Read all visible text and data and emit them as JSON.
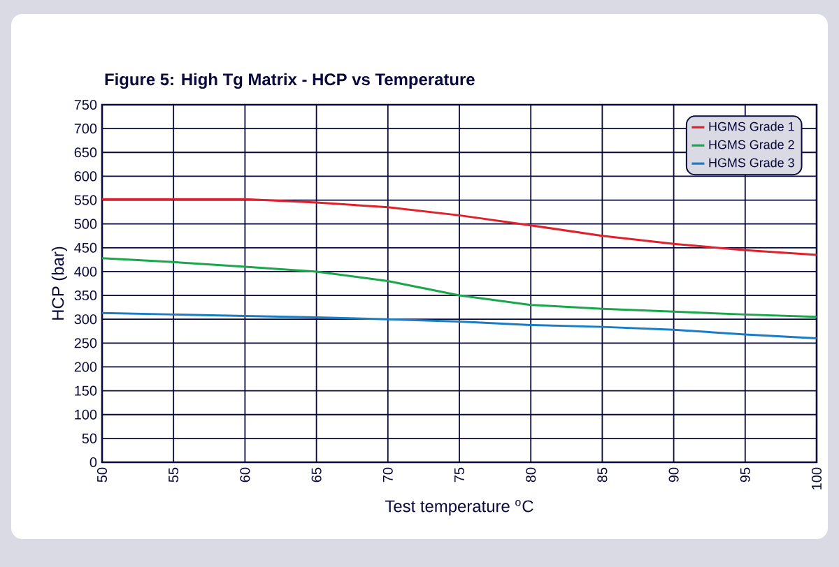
{
  "chart_data": {
    "type": "line",
    "title": "Figure 5: High Tg Matrix - HCP vs Temperature",
    "xlabel": "Test temperature $^{o}$C",
    "ylabel": "HCP (bar)",
    "x": [
      50,
      55,
      60,
      65,
      70,
      75,
      80,
      85,
      90,
      95,
      100
    ],
    "series": [
      {
        "name": "HGMS Grade 1",
        "color": "#e0202a",
        "values": [
          552,
          552,
          552,
          545,
          535,
          518,
          497,
          475,
          458,
          445,
          435
        ]
      },
      {
        "name": "HGMS Grade 2",
        "color": "#1aa64a",
        "values": [
          428,
          420,
          410,
          400,
          380,
          350,
          330,
          322,
          316,
          310,
          305
        ]
      },
      {
        "name": "HGMS Grade 3",
        "color": "#1a7cc4",
        "values": [
          313,
          310,
          307,
          304,
          300,
          295,
          288,
          284,
          278,
          268,
          260
        ]
      }
    ],
    "xlim": [
      50,
      100
    ],
    "xticks": [
      50,
      55,
      60,
      65,
      70,
      75,
      80,
      85,
      90,
      95,
      100
    ],
    "ylim": [
      0,
      750
    ],
    "yticks": [
      0,
      50,
      100,
      150,
      200,
      250,
      300,
      350,
      400,
      450,
      500,
      550,
      600,
      650,
      700,
      750
    ],
    "grid": true,
    "legend": "top right",
    "marker": "none",
    "line_style": "solid"
  }
}
